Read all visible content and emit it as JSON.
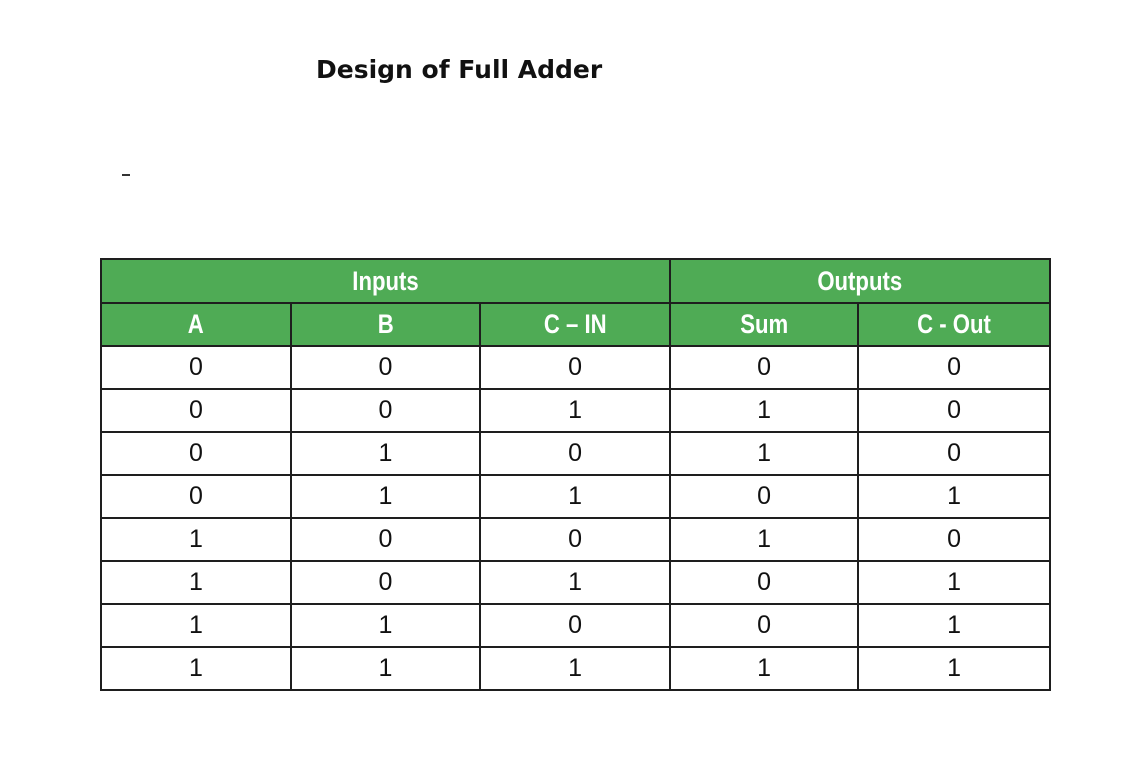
{
  "title": "Design of Full Adder",
  "table": {
    "groups": [
      {
        "label": "Inputs",
        "span": 3
      },
      {
        "label": "Outputs",
        "span": 2
      }
    ],
    "columns": [
      "A",
      "B",
      "C – IN",
      "Sum",
      "C - Out"
    ],
    "rows": [
      [
        "0",
        "0",
        "0",
        "0",
        "0"
      ],
      [
        "0",
        "0",
        "1",
        "1",
        "0"
      ],
      [
        "0",
        "1",
        "0",
        "1",
        "0"
      ],
      [
        "0",
        "1",
        "1",
        "0",
        "1"
      ],
      [
        "1",
        "0",
        "0",
        "1",
        "0"
      ],
      [
        "1",
        "0",
        "1",
        "0",
        "1"
      ],
      [
        "1",
        "1",
        "0",
        "0",
        "1"
      ],
      [
        "1",
        "1",
        "1",
        "1",
        "1"
      ]
    ],
    "header_color": "#4fab55",
    "border_color": "#1e1e1e"
  }
}
